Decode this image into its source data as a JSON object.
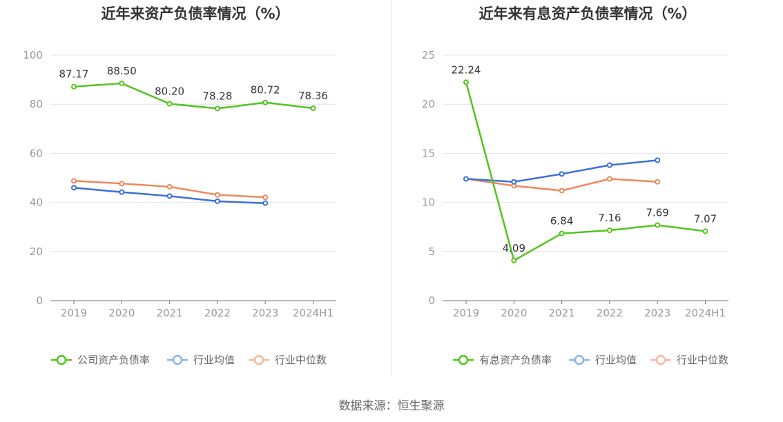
{
  "chart_data": [
    {
      "type": "line",
      "title": "近年来资产负债率情况（%）",
      "categories": [
        "2019",
        "2020",
        "2021",
        "2022",
        "2023",
        "2024H1"
      ],
      "ylim": [
        0,
        100
      ],
      "yticks": [
        0,
        20,
        40,
        60,
        80,
        100
      ],
      "grid": true,
      "legend_position": "bottom",
      "series": [
        {
          "name": "公司资产负债率",
          "color": "#52c41a",
          "values": [
            87.17,
            88.5,
            80.2,
            78.28,
            80.72,
            78.36
          ],
          "labels": [
            "87.17",
            "88.50",
            "80.20",
            "78.28",
            "80.72",
            "78.36"
          ]
        },
        {
          "name": "行业均值",
          "color": "#3b6fd9",
          "values": [
            46.0,
            44.2,
            42.6,
            40.5,
            39.7,
            null
          ]
        },
        {
          "name": "行业中位数",
          "color": "#f0875a",
          "values": [
            48.8,
            47.7,
            46.4,
            43.1,
            42.1,
            null
          ]
        }
      ]
    },
    {
      "type": "line",
      "title": "近年来有息资产负债率情况（%）",
      "categories": [
        "2019",
        "2020",
        "2021",
        "2022",
        "2023",
        "2024H1"
      ],
      "ylim": [
        0,
        25
      ],
      "yticks": [
        0,
        5,
        10,
        15,
        20,
        25
      ],
      "grid": true,
      "legend_position": "bottom",
      "series": [
        {
          "name": "有息资产负债率",
          "color": "#52c41a",
          "values": [
            22.24,
            4.09,
            6.84,
            7.16,
            7.69,
            7.07
          ],
          "labels": [
            "22.24",
            "4.09",
            "6.84",
            "7.16",
            "7.69",
            "7.07"
          ]
        },
        {
          "name": "行业均值",
          "color": "#3b6fd9",
          "values": [
            12.4,
            12.1,
            12.9,
            13.8,
            14.3,
            null
          ]
        },
        {
          "name": "行业中位数",
          "color": "#f0875a",
          "values": [
            12.4,
            11.7,
            11.2,
            12.4,
            12.1,
            null
          ]
        }
      ]
    }
  ],
  "footer": {
    "source": "数据来源：恒生聚源"
  }
}
